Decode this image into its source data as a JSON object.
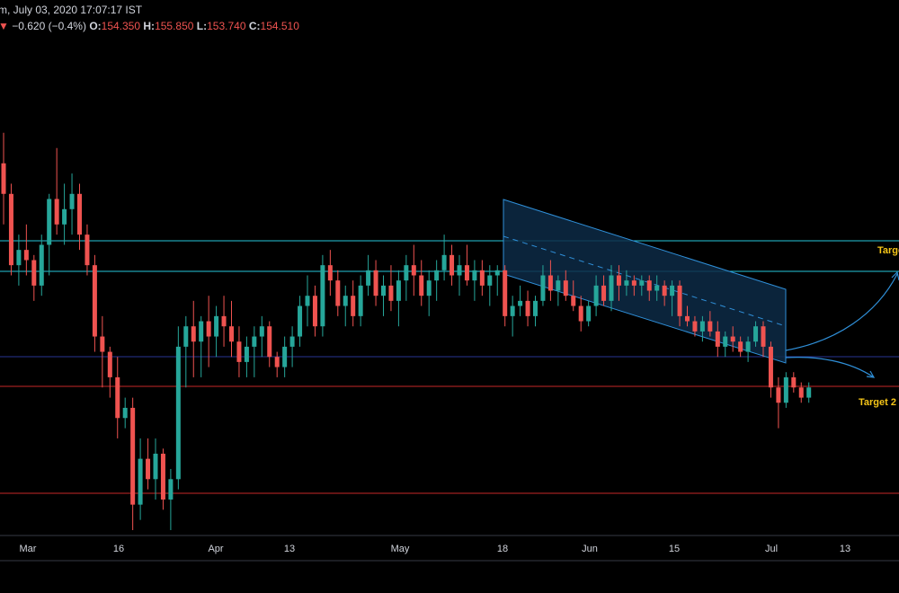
{
  "header": {
    "title_suffix": "m, July 03, 2020 17:07:17 IST",
    "change_arrow": "▼",
    "change": "−0.620 (−0.4%)",
    "o_label": "O:",
    "o_value": "154.350",
    "h_label": "H:",
    "h_value": "155.850",
    "l_label": "L:",
    "l_value": "153.740",
    "c_label": "C:",
    "c_value": "154.510"
  },
  "colors": {
    "background": "#000000",
    "up": "#26a69a",
    "down": "#ef5350",
    "channel_fill": "#0d2a45",
    "channel_line": "#2f8fd8",
    "cyan_level": "#26c6da",
    "red_level": "#c62828",
    "target_text": "#f5c518",
    "arrow": "#2f8fd8"
  },
  "chart_data": {
    "type": "candlestick",
    "x_ticks": [
      "Mar",
      "16",
      "Apr",
      "13",
      "May",
      "18",
      "Jun",
      "15",
      "Jul",
      "13"
    ],
    "annotations": {
      "target_1": "Targe",
      "target_2": "Target 2"
    },
    "ohlc": [
      [
        172,
        178,
        160,
        166
      ],
      [
        166,
        168,
        150,
        152
      ],
      [
        152,
        158,
        148,
        155
      ],
      [
        155,
        160,
        150,
        153
      ],
      [
        153,
        154,
        145,
        148
      ],
      [
        148,
        158,
        146,
        156
      ],
      [
        156,
        166,
        150,
        165
      ],
      [
        165,
        175,
        158,
        160
      ],
      [
        160,
        168,
        156,
        163
      ],
      [
        163,
        170,
        158,
        166
      ],
      [
        166,
        168,
        155,
        158
      ],
      [
        158,
        160,
        150,
        152
      ],
      [
        152,
        154,
        135,
        138
      ],
      [
        138,
        142,
        128,
        135
      ],
      [
        135,
        136,
        126,
        130
      ],
      [
        130,
        134,
        118,
        122
      ],
      [
        122,
        126,
        120,
        124
      ],
      [
        124,
        126,
        100,
        105
      ],
      [
        105,
        118,
        102,
        114
      ],
      [
        114,
        118,
        108,
        110
      ],
      [
        110,
        118,
        106,
        115
      ],
      [
        115,
        116,
        104,
        106
      ],
      [
        106,
        112,
        100,
        110
      ],
      [
        110,
        140,
        108,
        136
      ],
      [
        136,
        142,
        128,
        140
      ],
      [
        140,
        145,
        130,
        137
      ],
      [
        137,
        142,
        130,
        141
      ],
      [
        141,
        146,
        132,
        138
      ],
      [
        138,
        144,
        134,
        142
      ],
      [
        142,
        146,
        136,
        140
      ],
      [
        140,
        145,
        134,
        137
      ],
      [
        137,
        140,
        130,
        133
      ],
      [
        133,
        138,
        130,
        136
      ],
      [
        136,
        140,
        130,
        138
      ],
      [
        138,
        142,
        134,
        140
      ],
      [
        140,
        141,
        132,
        134
      ],
      [
        134,
        135,
        130,
        132
      ],
      [
        132,
        138,
        130,
        136
      ],
      [
        136,
        140,
        132,
        138
      ],
      [
        138,
        146,
        136,
        144
      ],
      [
        144,
        150,
        140,
        146
      ],
      [
        146,
        148,
        138,
        140
      ],
      [
        140,
        154,
        138,
        152
      ],
      [
        152,
        155,
        146,
        149
      ],
      [
        149,
        151,
        142,
        144
      ],
      [
        144,
        148,
        140,
        146
      ],
      [
        146,
        149,
        140,
        142
      ],
      [
        142,
        150,
        140,
        148
      ],
      [
        148,
        154,
        146,
        151
      ],
      [
        151,
        153,
        144,
        146
      ],
      [
        146,
        150,
        142,
        148
      ],
      [
        148,
        152,
        143,
        145
      ],
      [
        145,
        151,
        140,
        149
      ],
      [
        149,
        154,
        145,
        152
      ],
      [
        152,
        156,
        146,
        150
      ],
      [
        150,
        153,
        144,
        146
      ],
      [
        146,
        151,
        142,
        149
      ],
      [
        149,
        153,
        145,
        151
      ],
      [
        151,
        158,
        149,
        154
      ],
      [
        154,
        156,
        148,
        150
      ],
      [
        150,
        154,
        146,
        152
      ],
      [
        152,
        156,
        148,
        149
      ],
      [
        149,
        153,
        145,
        151
      ],
      [
        151,
        153,
        146,
        148
      ],
      [
        148,
        152,
        144,
        150
      ],
      [
        150,
        152,
        146,
        151
      ],
      [
        151,
        152,
        140,
        142
      ],
      [
        142,
        146,
        138,
        144
      ],
      [
        144,
        148,
        142,
        145
      ],
      [
        145,
        147,
        140,
        142
      ],
      [
        142,
        146,
        140,
        145
      ],
      [
        145,
        152,
        144,
        150
      ],
      [
        150,
        153,
        145,
        147
      ],
      [
        147,
        150,
        144,
        149
      ],
      [
        149,
        151,
        145,
        146
      ],
      [
        146,
        149,
        143,
        144
      ],
      [
        144,
        146,
        139,
        141
      ],
      [
        141,
        145,
        140,
        144
      ],
      [
        144,
        150,
        142,
        148
      ],
      [
        148,
        150,
        144,
        145
      ],
      [
        145,
        152,
        143,
        150
      ],
      [
        150,
        152,
        145,
        148
      ],
      [
        148,
        151,
        146,
        149
      ],
      [
        149,
        150,
        146,
        148
      ],
      [
        148,
        150,
        146,
        149
      ],
      [
        149,
        150,
        145,
        147
      ],
      [
        147,
        150,
        145,
        148
      ],
      [
        148,
        149,
        144,
        146
      ],
      [
        146,
        149,
        142,
        148
      ],
      [
        148,
        149,
        140,
        142
      ],
      [
        142,
        144,
        140,
        141
      ],
      [
        141,
        142,
        138,
        139
      ],
      [
        139,
        142,
        137,
        141
      ],
      [
        141,
        143,
        138,
        139
      ],
      [
        139,
        141,
        134,
        136
      ],
      [
        136,
        139,
        134,
        138
      ],
      [
        138,
        140,
        135,
        137
      ],
      [
        137,
        138,
        134,
        135
      ],
      [
        135,
        138,
        133,
        137
      ],
      [
        137,
        141,
        136,
        140
      ],
      [
        140,
        141,
        134,
        136
      ],
      [
        136,
        137,
        126,
        128
      ],
      [
        128,
        130,
        120,
        125
      ],
      [
        125,
        131,
        124,
        130
      ],
      [
        130,
        131,
        127,
        128
      ],
      [
        128,
        129,
        125,
        126
      ],
      [
        126,
        129,
        125,
        128
      ]
    ]
  }
}
